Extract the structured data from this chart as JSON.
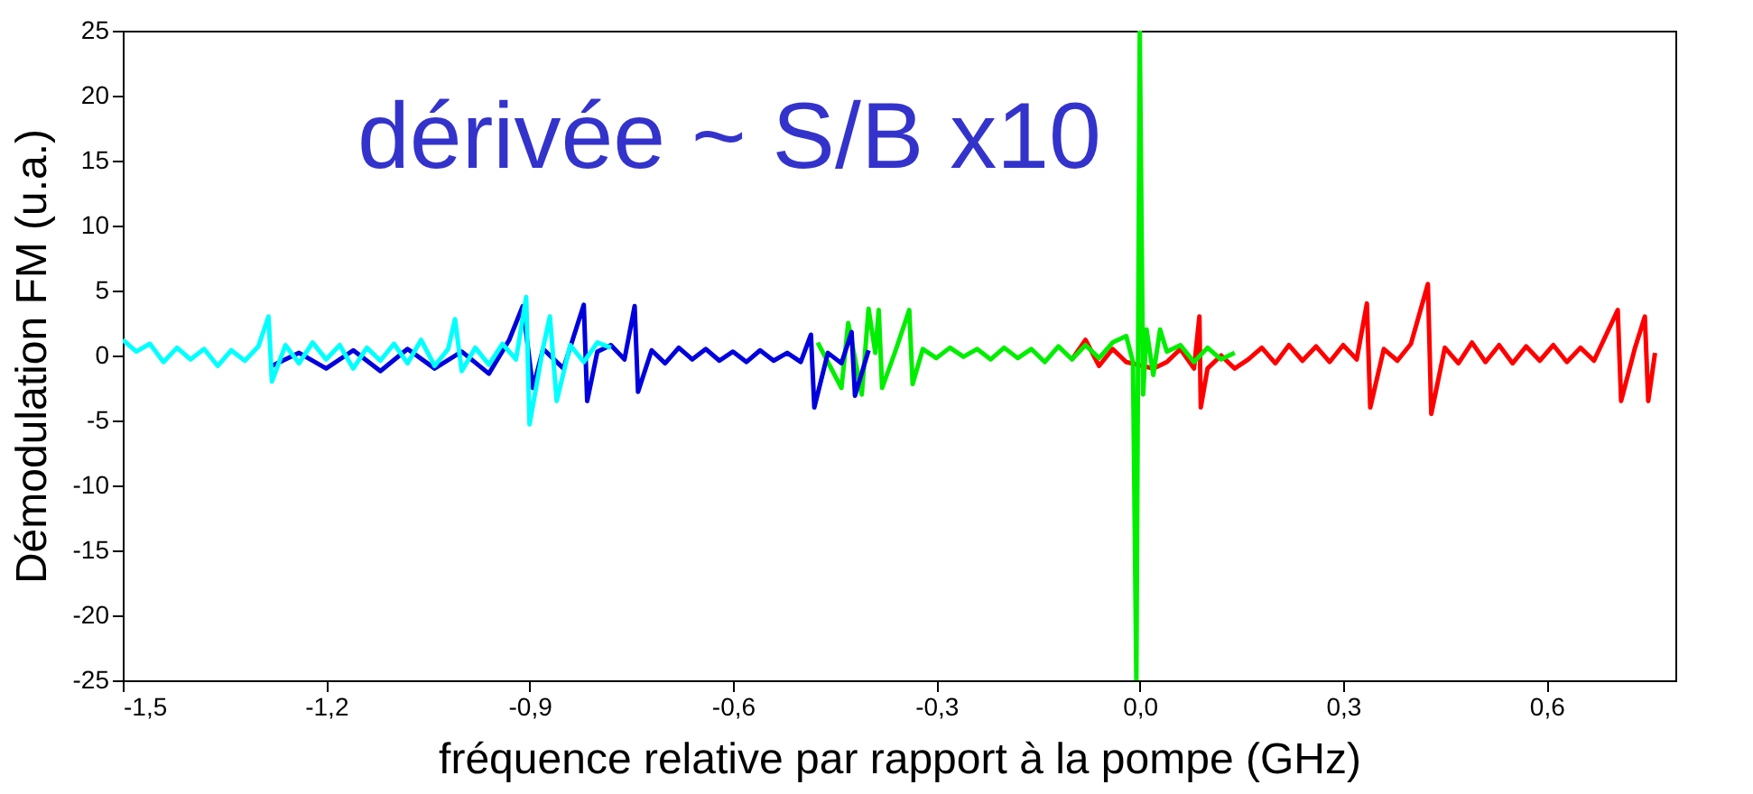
{
  "chart_data": {
    "type": "line",
    "xlabel": "fréquence relative par rapport à la pompe (GHz)",
    "ylabel": "Démodulation FM (u.a.)",
    "annotations": [
      "dérivée ~ S/B x10"
    ],
    "xlim": [
      -1.5,
      0.79
    ],
    "ylim": [
      -25,
      25
    ],
    "xticks": [
      {
        "value": -1.5,
        "label": "-1,5"
      },
      {
        "value": -1.2,
        "label": "-1,2"
      },
      {
        "value": -0.9,
        "label": "-0,9"
      },
      {
        "value": -0.6,
        "label": "-0,6"
      },
      {
        "value": -0.3,
        "label": "-0,3"
      },
      {
        "value": 0.0,
        "label": "0,0"
      },
      {
        "value": 0.3,
        "label": "0,3"
      },
      {
        "value": 0.6,
        "label": "0,6"
      }
    ],
    "yticks": [
      -25,
      -20,
      -15,
      -10,
      -5,
      0,
      5,
      10,
      15,
      20,
      25
    ],
    "grid": false,
    "marker": "none",
    "line_style": "solid",
    "series": [
      {
        "color": "#ff0000",
        "x": [
          -0.1,
          -0.08,
          -0.06,
          -0.04,
          -0.02,
          0.02,
          0.04,
          0.06,
          0.08,
          0.088,
          0.09,
          0.1,
          0.12,
          0.14,
          0.16,
          0.18,
          0.2,
          0.22,
          0.24,
          0.26,
          0.28,
          0.3,
          0.32,
          0.335,
          0.34,
          0.36,
          0.38,
          0.4,
          0.425,
          0.43,
          0.45,
          0.47,
          0.49,
          0.51,
          0.53,
          0.55,
          0.57,
          0.59,
          0.61,
          0.63,
          0.65,
          0.67,
          0.705,
          0.71,
          0.73,
          0.745,
          0.75,
          0.76
        ],
        "values": [
          -0.3,
          1.2,
          -0.8,
          0.5,
          -0.5,
          -1.0,
          -0.5,
          0.5,
          -1.0,
          3.0,
          -4.0,
          -1.0,
          0.0,
          -1.0,
          -0.3,
          0.6,
          -0.6,
          0.8,
          -0.4,
          0.7,
          -0.5,
          0.8,
          -0.3,
          4.0,
          -4.0,
          0.5,
          -0.4,
          0.9,
          5.5,
          -4.5,
          0.6,
          -0.6,
          1.0,
          -0.5,
          0.8,
          -0.6,
          0.7,
          -0.4,
          0.8,
          -0.5,
          0.6,
          -0.4,
          3.5,
          -3.5,
          0.5,
          3.0,
          -3.5,
          0.2
        ]
      },
      {
        "color": "#00ee00",
        "x": [
          -0.475,
          -0.44,
          -0.43,
          -0.41,
          -0.4,
          -0.39,
          -0.385,
          -0.38,
          -0.36,
          -0.34,
          -0.335,
          -0.32,
          -0.3,
          -0.28,
          -0.26,
          -0.24,
          -0.22,
          -0.2,
          -0.18,
          -0.16,
          -0.14,
          -0.12,
          -0.1,
          -0.08,
          -0.06,
          -0.04,
          -0.02,
          -0.01,
          -0.005,
          0.0,
          0.005,
          0.01,
          0.02,
          0.03,
          0.04,
          0.06,
          0.08,
          0.1,
          0.12,
          0.14
        ],
        "values": [
          1.0,
          -2.5,
          2.5,
          -3.0,
          3.6,
          0.2,
          3.5,
          -2.5,
          0.4,
          3.5,
          -2.2,
          0.5,
          -0.2,
          0.6,
          -0.1,
          0.5,
          -0.3,
          0.6,
          -0.2,
          0.5,
          -0.5,
          0.7,
          -0.3,
          0.8,
          -0.2,
          1.0,
          1.5,
          -0.5,
          -25,
          25,
          -3,
          2.0,
          -1.5,
          2.0,
          0.3,
          0.8,
          -0.5,
          0.6,
          -0.3,
          0.2
        ]
      },
      {
        "color": "#0000dd",
        "x": [
          -1.28,
          -1.24,
          -1.2,
          -1.16,
          -1.12,
          -1.08,
          -1.04,
          -1.0,
          -0.96,
          -0.93,
          -0.91,
          -0.895,
          -0.88,
          -0.85,
          -0.82,
          -0.815,
          -0.8,
          -0.78,
          -0.76,
          -0.745,
          -0.74,
          -0.72,
          -0.7,
          -0.68,
          -0.66,
          -0.64,
          -0.62,
          -0.6,
          -0.58,
          -0.56,
          -0.54,
          -0.52,
          -0.5,
          -0.485,
          -0.48,
          -0.46,
          -0.44,
          -0.425,
          -0.42,
          -0.4
        ],
        "values": [
          -0.8,
          0.2,
          -1.0,
          0.4,
          -1.2,
          0.5,
          -1.0,
          0.3,
          -1.4,
          1.2,
          3.8,
          -2.5,
          0.5,
          -1.0,
          3.9,
          -3.5,
          0.3,
          0.8,
          -0.3,
          3.8,
          -2.8,
          0.4,
          -0.6,
          0.6,
          -0.3,
          0.5,
          -0.4,
          0.3,
          -0.5,
          0.4,
          -0.4,
          0.2,
          -0.5,
          1.6,
          -4.0,
          0.2,
          -0.6,
          1.8,
          -3.1,
          0.4
        ]
      },
      {
        "color": "#00ffff",
        "x": [
          -1.5,
          -1.48,
          -1.46,
          -1.44,
          -1.42,
          -1.4,
          -1.38,
          -1.36,
          -1.34,
          -1.32,
          -1.3,
          -1.285,
          -1.28,
          -1.26,
          -1.24,
          -1.22,
          -1.2,
          -1.18,
          -1.16,
          -1.14,
          -1.12,
          -1.1,
          -1.08,
          -1.06,
          -1.04,
          -1.02,
          -1.01,
          -1.0,
          -0.98,
          -0.96,
          -0.94,
          -0.92,
          -0.905,
          -0.9,
          -0.88,
          -0.87,
          -0.86,
          -0.84,
          -0.82,
          -0.8,
          -0.78
        ],
        "values": [
          1.2,
          0.3,
          0.9,
          -0.5,
          0.6,
          -0.3,
          0.5,
          -0.8,
          0.4,
          -0.4,
          0.7,
          3.0,
          -2.0,
          0.8,
          -0.6,
          1.0,
          -0.3,
          0.8,
          -1.0,
          0.6,
          -0.4,
          0.9,
          -0.6,
          1.2,
          -0.8,
          0.5,
          2.8,
          -1.2,
          0.6,
          -0.7,
          0.9,
          -0.3,
          4.5,
          -5.3,
          0.6,
          3.0,
          -3.5,
          0.8,
          -0.5,
          1.0,
          0.6
        ]
      }
    ]
  }
}
